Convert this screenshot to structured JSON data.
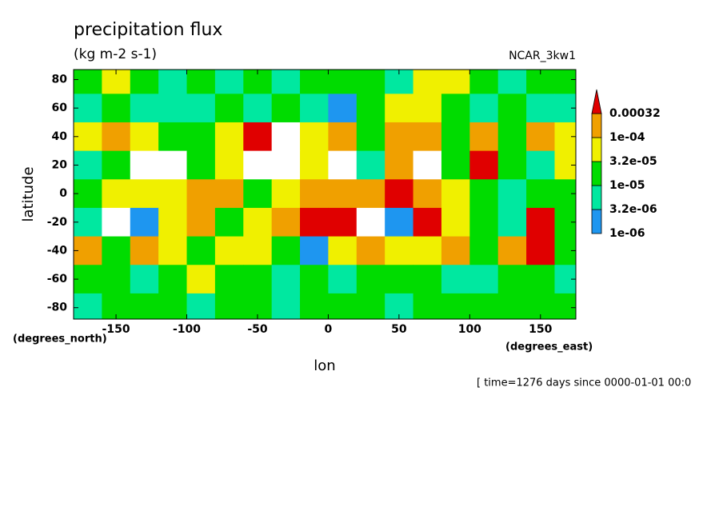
{
  "chart_data": {
    "type": "contour",
    "title": "precipitation flux",
    "subtitle": "(kg m-2 s-1)",
    "source_label": "NCAR_3kw1",
    "xlabel": "lon",
    "ylabel": "latitude",
    "x_units": "(degrees_east)",
    "y_units": "(degrees_north)",
    "footer": "[ time=1276 days since 0000-01-01 00:0",
    "xlim": [
      -180,
      175
    ],
    "ylim": [
      -88,
      87
    ],
    "xticks": [
      -150,
      -100,
      -50,
      0,
      50,
      100,
      150
    ],
    "yticks": [
      -80,
      -60,
      -40,
      -20,
      0,
      20,
      40,
      60,
      80
    ],
    "x": [
      -170,
      -150,
      -130,
      -110,
      -90,
      -70,
      -50,
      -30,
      -10,
      10,
      30,
      50,
      70,
      90,
      110,
      130,
      150,
      170
    ],
    "y": [
      80,
      60,
      40,
      20,
      0,
      -20,
      -40,
      -60,
      -80
    ],
    "levels": [
      {
        "value": 1e-06,
        "label": "1e-06"
      },
      {
        "value": 3.2e-06,
        "label": "3.2e-06"
      },
      {
        "value": 1e-05,
        "label": "1e-05"
      },
      {
        "value": 3.2e-05,
        "label": "3.2e-05"
      },
      {
        "value": 0.0001,
        "label": "1e-04"
      },
      0.00032
    ],
    "colors": [
      "#1e96f0",
      "#00e8a0",
      "#00dc00",
      "#f0f000",
      "#f0a000",
      "#e00000"
    ],
    "z": [
      [
        2e-05,
        5e-05,
        2e-05,
        5e-06,
        2e-05,
        5e-06,
        2e-05,
        5e-06,
        2e-05,
        2e-05,
        2e-05,
        5e-06,
        5e-05,
        5e-05,
        2e-05,
        5e-06,
        2e-05,
        2e-05
      ],
      [
        5e-06,
        2e-05,
        5e-06,
        5e-06,
        5e-06,
        2e-05,
        5e-06,
        2e-05,
        5e-06,
        2e-06,
        2e-05,
        5e-05,
        5e-05,
        2e-05,
        5e-06,
        2e-05,
        5e-06,
        5e-06
      ],
      [
        5e-05,
        0.00015,
        5e-05,
        2e-05,
        2e-05,
        5e-05,
        0.0004,
        5e-07,
        5e-05,
        0.00015,
        2e-05,
        0.00015,
        0.00015,
        2e-05,
        0.00015,
        2e-05,
        0.00015,
        5e-05
      ],
      [
        5e-06,
        2e-05,
        5e-07,
        5e-07,
        2e-05,
        5e-05,
        5e-07,
        5e-07,
        5e-05,
        5e-07,
        5e-06,
        0.00015,
        5e-07,
        2e-05,
        0.0004,
        2e-05,
        5e-06,
        5e-05
      ],
      [
        2e-05,
        5e-05,
        5e-05,
        5e-05,
        0.00015,
        0.00015,
        2e-05,
        5e-05,
        0.00015,
        0.00015,
        0.00015,
        0.0004,
        0.00015,
        5e-05,
        2e-05,
        5e-06,
        2e-05,
        2e-05
      ],
      [
        5e-06,
        5e-07,
        2e-06,
        5e-05,
        0.00015,
        2e-05,
        5e-05,
        0.00015,
        0.0004,
        0.0004,
        5e-07,
        2e-06,
        0.0004,
        5e-05,
        2e-05,
        5e-06,
        0.0004,
        2e-05
      ],
      [
        0.00015,
        2e-05,
        0.00015,
        5e-05,
        2e-05,
        5e-05,
        5e-05,
        2e-05,
        2e-06,
        5e-05,
        0.00015,
        5e-05,
        5e-05,
        0.00015,
        2e-05,
        0.00015,
        0.0004,
        2e-05
      ],
      [
        2e-05,
        2e-05,
        5e-06,
        2e-05,
        5e-05,
        2e-05,
        2e-05,
        5e-06,
        2e-05,
        5e-06,
        2e-05,
        2e-05,
        2e-05,
        5e-06,
        5e-06,
        2e-05,
        2e-05,
        5e-06
      ],
      [
        5e-06,
        2e-05,
        2e-05,
        2e-05,
        5e-06,
        2e-05,
        2e-05,
        5e-06,
        2e-05,
        2e-05,
        2e-05,
        5e-06,
        2e-05,
        2e-05,
        2e-05,
        2e-05,
        2e-05,
        2e-05
      ]
    ]
  }
}
